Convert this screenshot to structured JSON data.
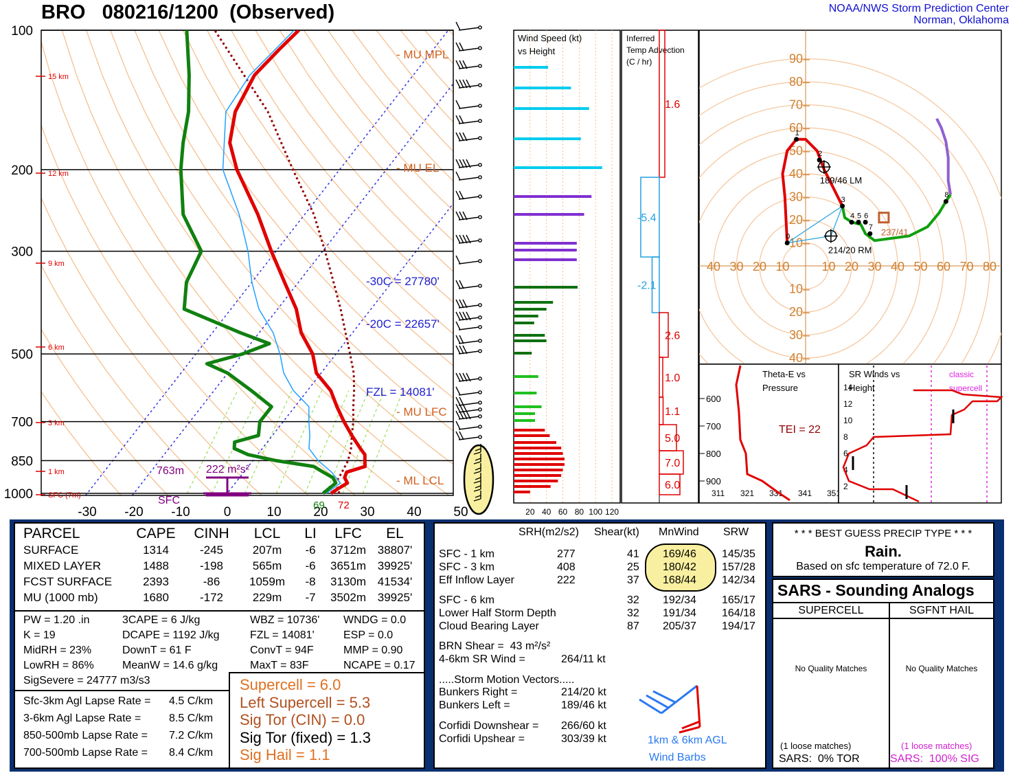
{
  "header": {
    "title": "BRO   080216/1200  (Observed)",
    "center_line1": "NOAA/NWS Storm Prediction Center",
    "center_line2": "Norman, Oklahoma"
  },
  "colors": {
    "temp": "#e00000",
    "dewpoint": "#108010",
    "wetbulb": "#20a0ff",
    "parcel": "#900000",
    "isotherm": "#3030e0",
    "dry_adiabat": "#f5c090",
    "mixing_ratio": "#a0e060",
    "blue_panel": "#0a2f70",
    "orange": "#e07020",
    "highlight": "#f8f0a0"
  },
  "chart_data": [
    {
      "type": "line",
      "name": "skewt",
      "title": "",
      "pressure_levels": [
        100,
        200,
        300,
        500,
        700,
        850,
        1000
      ],
      "temp_ticks": [
        -30,
        -20,
        -10,
        0,
        10,
        20,
        30,
        40,
        50
      ],
      "height_labels": [
        "15 km",
        "12 km",
        "9 km",
        "6 km",
        "3 km",
        "1 km",
        "SFC (7m)"
      ],
      "temperature": [
        [
          1000,
          22.2
        ],
        [
          975,
          23.0
        ],
        [
          950,
          24.0
        ],
        [
          925,
          22.5
        ],
        [
          900,
          22.0
        ],
        [
          875,
          25.0
        ],
        [
          850,
          24.0
        ],
        [
          825,
          23.0
        ],
        [
          800,
          21.0
        ],
        [
          750,
          17.0
        ],
        [
          700,
          13.0
        ],
        [
          650,
          9.0
        ],
        [
          600,
          5.0
        ],
        [
          550,
          -1.0
        ],
        [
          500,
          -5.0
        ],
        [
          450,
          -11.0
        ],
        [
          400,
          -16.0
        ],
        [
          350,
          -23.0
        ],
        [
          300,
          -31.0
        ],
        [
          250,
          -40.0
        ],
        [
          200,
          -52.0
        ],
        [
          175,
          -58.0
        ],
        [
          150,
          -62.0
        ],
        [
          125,
          -64.0
        ],
        [
          110,
          -63.0
        ],
        [
          100,
          -62.0
        ]
      ],
      "dewpoint": [
        [
          1000,
          20.5
        ],
        [
          975,
          21.0
        ],
        [
          950,
          21.5
        ],
        [
          925,
          20.0
        ],
        [
          900,
          17.0
        ],
        [
          875,
          14.0
        ],
        [
          850,
          5.0
        ],
        [
          825,
          -2.0
        ],
        [
          800,
          -6.0
        ],
        [
          775,
          -7.0
        ],
        [
          750,
          -3.0
        ],
        [
          700,
          -5.0
        ],
        [
          650,
          -5.0
        ],
        [
          600,
          -12.0
        ],
        [
          550,
          -20.0
        ],
        [
          525,
          -26.0
        ],
        [
          500,
          -20.0
        ],
        [
          475,
          -16.0
        ],
        [
          450,
          -24.0
        ],
        [
          400,
          -40.0
        ],
        [
          350,
          -44.0
        ],
        [
          300,
          -46.0
        ],
        [
          250,
          -56.0
        ],
        [
          200,
          -64.0
        ],
        [
          175,
          -68.0
        ],
        [
          150,
          -72.0
        ],
        [
          125,
          -78.0
        ],
        [
          100,
          -86.0
        ]
      ],
      "wetbulb": [
        [
          1000,
          21.2
        ],
        [
          950,
          22.5
        ],
        [
          900,
          18.8
        ],
        [
          850,
          14.0
        ],
        [
          800,
          10.0
        ],
        [
          750,
          8.0
        ],
        [
          700,
          5.5
        ],
        [
          650,
          3.0
        ],
        [
          600,
          -3.0
        ],
        [
          550,
          -8.0
        ],
        [
          500,
          -12.0
        ],
        [
          450,
          -17.0
        ],
        [
          400,
          -24.0
        ],
        [
          350,
          -30.0
        ],
        [
          300,
          -36.0
        ],
        [
          250,
          -44.0
        ],
        [
          200,
          -55.0
        ],
        [
          150,
          -64.0
        ],
        [
          125,
          -65.0
        ],
        [
          100,
          -63.0
        ]
      ],
      "parcel": [
        [
          1000,
          24.0
        ],
        [
          950,
          21.5
        ],
        [
          900,
          21.0
        ],
        [
          850,
          20.4
        ],
        [
          800,
          19.0
        ],
        [
          750,
          17.0
        ],
        [
          700,
          15.0
        ],
        [
          650,
          12.5
        ],
        [
          600,
          10.0
        ],
        [
          550,
          7.0
        ],
        [
          500,
          3.0
        ],
        [
          450,
          -1.5
        ],
        [
          400,
          -6.5
        ],
        [
          350,
          -12.5
        ],
        [
          300,
          -19.5
        ],
        [
          250,
          -28.0
        ],
        [
          200,
          -40.0
        ],
        [
          150,
          -55.0
        ],
        [
          100,
          -80.0
        ]
      ],
      "annotations": [
        "- MU MPL",
        "- MU EL",
        "- MU LFC",
        "- ML LCL",
        "-30C = 27780'",
        "-20C = 22657'",
        "FZL = 14081'",
        "763m",
        "222 m²s²",
        "SFC",
        "69",
        "72"
      ]
    },
    {
      "type": "bar",
      "name": "wind_speed_vs_height",
      "title": "Wind Speed (kt)\nvs Height",
      "x_ticks": [
        "20",
        "40",
        "60",
        "80",
        "100",
        "120"
      ],
      "xlim": [
        0,
        130
      ],
      "bars": [
        {
          "y": 98,
          "v": 42,
          "c": "#00ccee"
        },
        {
          "y": 128,
          "v": 70,
          "c": "#00ccee"
        },
        {
          "y": 158,
          "v": 92,
          "c": "#00ccee"
        },
        {
          "y": 202,
          "v": 82,
          "c": "#00ccee"
        },
        {
          "y": 244,
          "v": 108,
          "c": "#00ccee"
        },
        {
          "y": 286,
          "v": 95,
          "c": "#8030d0"
        },
        {
          "y": 312,
          "v": 86,
          "c": "#8030d0"
        },
        {
          "y": 354,
          "v": 77,
          "c": "#8030d0"
        },
        {
          "y": 364,
          "v": 77,
          "c": "#8030d0"
        },
        {
          "y": 378,
          "v": 77,
          "c": "#8030d0"
        },
        {
          "y": 418,
          "v": 78,
          "c": "#107010"
        },
        {
          "y": 440,
          "v": 48,
          "c": "#107010"
        },
        {
          "y": 450,
          "v": 40,
          "c": "#107010"
        },
        {
          "y": 460,
          "v": 30,
          "c": "#107010"
        },
        {
          "y": 470,
          "v": 25,
          "c": "#107010"
        },
        {
          "y": 488,
          "v": 38,
          "c": "#107010"
        },
        {
          "y": 496,
          "v": 40,
          "c": "#107010"
        },
        {
          "y": 514,
          "v": 22,
          "c": "#107010"
        },
        {
          "y": 548,
          "v": 30,
          "c": "#20c020"
        },
        {
          "y": 572,
          "v": 28,
          "c": "#20c020"
        },
        {
          "y": 592,
          "v": 34,
          "c": "#20c020"
        },
        {
          "y": 602,
          "v": 26,
          "c": "#20c020"
        },
        {
          "y": 612,
          "v": 26,
          "c": "#20c020"
        },
        {
          "y": 626,
          "v": 38,
          "c": "#e00000"
        },
        {
          "y": 634,
          "v": 44,
          "c": "#e00000"
        },
        {
          "y": 644,
          "v": 52,
          "c": "#e00000"
        },
        {
          "y": 652,
          "v": 58,
          "c": "#e00000"
        },
        {
          "y": 660,
          "v": 60,
          "c": "#e00000"
        },
        {
          "y": 668,
          "v": 62,
          "c": "#e00000"
        },
        {
          "y": 676,
          "v": 62,
          "c": "#e00000"
        },
        {
          "y": 684,
          "v": 60,
          "c": "#e00000"
        },
        {
          "y": 692,
          "v": 58,
          "c": "#e00000"
        },
        {
          "y": 700,
          "v": 54,
          "c": "#e00000"
        },
        {
          "y": 708,
          "v": 45,
          "c": "#e00000"
        },
        {
          "y": 716,
          "v": 20,
          "c": "#e00000"
        }
      ]
    },
    {
      "type": "bar",
      "name": "inferred_temp_advection",
      "title": "Inferred\nTemp Advection\n(C / hr)",
      "segments": [
        {
          "top": 44,
          "bot": 258,
          "v": 1.6,
          "label": "1.6"
        },
        {
          "top": 258,
          "bot": 374,
          "v": -5.4,
          "label": "-5.4"
        },
        {
          "top": 374,
          "bot": 455,
          "v": -2.1,
          "label": "-2.1"
        },
        {
          "top": 455,
          "bot": 520,
          "v": 2.6,
          "label": "2.6"
        },
        {
          "top": 520,
          "bot": 578,
          "v": 1.0,
          "label": "1.0"
        },
        {
          "top": 578,
          "bot": 618,
          "v": 1.1,
          "label": "1.1"
        },
        {
          "top": 618,
          "bot": 656,
          "v": 5.0,
          "label": "5.0"
        },
        {
          "top": 656,
          "bot": 690,
          "v": 7.0,
          "label": "7.0"
        },
        {
          "top": 690,
          "bot": 720,
          "v": 6.0,
          "label": "6.0"
        }
      ]
    },
    {
      "type": "line",
      "name": "hodograph",
      "rings_kt": [
        10,
        20,
        30,
        40,
        50,
        60,
        70,
        80,
        90
      ],
      "axis_ticks": [
        "40",
        "30",
        "20",
        "10",
        "10",
        "20",
        "30",
        "40",
        "50",
        "60",
        "70",
        "80"
      ],
      "v_ticks_up": [
        "10",
        "20",
        "30",
        "40",
        "50",
        "60",
        "70",
        "80",
        "90"
      ],
      "v_ticks_down": [
        "10",
        "20",
        "30",
        "40"
      ],
      "trace_red": [
        [
          -8,
          10
        ],
        [
          -9,
          30
        ],
        [
          -10,
          40
        ],
        [
          -8,
          50
        ],
        [
          -4,
          55
        ],
        [
          0,
          55
        ],
        [
          5,
          50
        ],
        [
          8,
          42
        ],
        [
          10,
          38
        ],
        [
          14,
          30
        ],
        [
          16,
          26
        ]
      ],
      "trace_green": [
        [
          16,
          26
        ],
        [
          17,
          21
        ],
        [
          20,
          19
        ],
        [
          24,
          18
        ],
        [
          26,
          14
        ],
        [
          30,
          11
        ],
        [
          45,
          13
        ],
        [
          53,
          17
        ],
        [
          58,
          23
        ],
        [
          61,
          28
        ],
        [
          63,
          31
        ]
      ],
      "trace_purple": [
        [
          63,
          31
        ],
        [
          62,
          37
        ],
        [
          62,
          47
        ],
        [
          61,
          54
        ],
        [
          59,
          60
        ],
        [
          57,
          64
        ]
      ],
      "points": [
        [
          -8,
          10,
          "0"
        ],
        [
          -4,
          55,
          "1"
        ],
        [
          6,
          46,
          "2"
        ],
        [
          16,
          26,
          "3"
        ],
        [
          20,
          19,
          "4"
        ],
        [
          23,
          19,
          "5"
        ],
        [
          26,
          19,
          "6"
        ],
        [
          28,
          14,
          "7"
        ],
        [
          61,
          28,
          "8"
        ]
      ],
      "rm": [
        11,
        13
      ],
      "lm": [
        8,
        43
      ],
      "rm_label": "214/20 RM",
      "lm_label": "189/46 LM",
      "mean_wind": [
        34,
        21
      ],
      "mean_wind_label": "237/41"
    },
    {
      "type": "line",
      "name": "theta_e_vs_pressure",
      "title": "Theta-E vs\nPressure",
      "x_ticks": [
        "311",
        "321",
        "331",
        "341",
        "351"
      ],
      "y_ticks": [
        "600",
        "700",
        "800",
        "900"
      ],
      "label": "TEI = 22"
    },
    {
      "type": "line",
      "name": "sr_winds_vs_height",
      "title": "SR Winds vs\nHeight",
      "y_ticks": [
        "2",
        "4",
        "6",
        "8",
        "10",
        "12",
        "14"
      ],
      "label": "classic\nsupercell"
    }
  ],
  "parcel_table": {
    "headers": [
      "PARCEL",
      "CAPE",
      "CINH",
      "LCL",
      "LI",
      "LFC",
      "EL"
    ],
    "rows": [
      [
        "SURFACE",
        "1314",
        "-245",
        "207m",
        "-6",
        "3712m",
        "38807'"
      ],
      [
        "MIXED LAYER",
        "1488",
        "-198",
        "565m",
        "-6",
        "3651m",
        "39925'"
      ],
      [
        "FCST SURFACE",
        "2393",
        "-86",
        "1059m",
        "-8",
        "3130m",
        "41534'"
      ],
      [
        "MU   (1000 mb)",
        "1680",
        "-172",
        "229m",
        "-7",
        "3502m",
        "39925'"
      ]
    ]
  },
  "indices": {
    "col1": [
      "PW = 1.20 .in",
      "K = 19",
      "MidRH = 23%",
      "LowRH = 86%",
      "SigSevere = 24777 m3/s3"
    ],
    "col2": [
      "3CAPE = 6 J/kg",
      "DCAPE = 1192 J/kg",
      "DownT = 61 F",
      "MeanW = 14.6 g/kg"
    ],
    "col3": [
      "WBZ = 10736'",
      "FZL = 14081'",
      "ConvT = 94F",
      "MaxT = 83F"
    ],
    "col4": [
      "WNDG = 0.0",
      "ESP = 0.0",
      "MMP = 0.90",
      "NCAPE = 0.17"
    ]
  },
  "lapse_rates": [
    [
      "Sfc-3km Agl Lapse Rate =",
      "4.5 C/km"
    ],
    [
      "3-6km Agl Lapse Rate =",
      "8.5 C/km"
    ],
    [
      "850-500mb Lapse Rate =",
      "7.2 C/km"
    ],
    [
      "700-500mb Lapse Rate =",
      "8.4 C/km"
    ]
  ],
  "composite": [
    {
      "label": "Supercell = 6.0",
      "color": "#e07020"
    },
    {
      "label": "Left Supercell = 5.3",
      "color": "#b05020"
    },
    {
      "label": "Sig Tor (CIN) = 0.0",
      "color": "#b05020"
    },
    {
      "label": "Sig Tor (fixed) = 1.3",
      "color": "#000000"
    },
    {
      "label": "Sig Hail = 1.1",
      "color": "#e07020"
    }
  ],
  "kinematics": {
    "headers": [
      "SRH(m2/s2)",
      "Shear(kt)",
      "MnWind",
      "SRW"
    ],
    "rows_top": [
      [
        "SFC - 1 km",
        "277",
        "41",
        "169/46",
        "145/35"
      ],
      [
        "SFC - 3 km",
        "408",
        "25",
        "180/42",
        "157/28"
      ],
      [
        "Eff Inflow Layer",
        "222",
        "37",
        "168/44",
        "142/34"
      ]
    ],
    "rows_bottom": [
      [
        "SFC - 6 km",
        "",
        "32",
        "192/34",
        "165/17"
      ],
      [
        "Lower Half Storm Depth",
        "",
        "32",
        "191/34",
        "164/18"
      ],
      [
        "Cloud Bearing Layer",
        "",
        "87",
        "205/37",
        "194/17"
      ]
    ],
    "brn_shear": "BRN Shear =  43 m²/s²",
    "sr_wind_label": "4-6km SR Wind =",
    "sr_wind_value": "264/11 kt",
    "storm_motion_title": ".....Storm Motion Vectors.....",
    "motions_a": [
      [
        "Bunkers Right =",
        "214/20 kt"
      ],
      [
        "Bunkers Left =",
        "189/46 kt"
      ]
    ],
    "motions_b": [
      [
        "Corfidi Downshear =",
        "266/60 kt"
      ],
      [
        "Corfidi Upshear =",
        "303/39 kt"
      ]
    ],
    "barb_label_1": "1km & 6km AGL",
    "barb_label_2": "Wind Barbs"
  },
  "precip": {
    "title": "* * * BEST GUESS PRECIP TYPE * * *",
    "value": "Rain.",
    "note": "Based on sfc temperature of 72.0 F."
  },
  "sars": {
    "title": "SARS - Sounding Analogs",
    "col1": "SUPERCELL",
    "col2": "SGFNT HAIL",
    "no_match": "No Quality Matches",
    "loose": "(1 loose matches)",
    "tor": "SARS:  0% TOR",
    "sig": "SARS:  100% SIG"
  }
}
